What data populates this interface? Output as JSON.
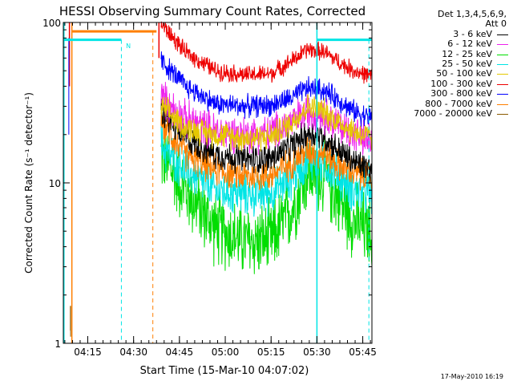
{
  "header": {
    "title": "HESSI Observing Summary Count Rates, Corrected"
  },
  "legend": {
    "detectors": "Det 1,3,4,5,6,9,",
    "attenuator": "Att 0",
    "entries": [
      {
        "label": "3 - 6 keV",
        "color": "#000000"
      },
      {
        "label": "6 - 12 keV",
        "color": "#ee22ee"
      },
      {
        "label": "12 - 25 keV",
        "color": "#00dd00"
      },
      {
        "label": "25 - 50 keV",
        "color": "#00e5e5"
      },
      {
        "label": "50 - 100 keV",
        "color": "#e5c800"
      },
      {
        "label": "100 - 300 keV",
        "color": "#ee0000"
      },
      {
        "label": "300 - 800 keV",
        "color": "#0000ff"
      },
      {
        "label": "800 - 7000 keV",
        "color": "#ff7f00"
      },
      {
        "label": "7000 - 20000 keV",
        "color": "#8b5a00"
      }
    ]
  },
  "footer": {
    "date": "17-May-2010 16:19"
  },
  "chart_data": {
    "type": "line",
    "title": "HESSI Observing Summary Count Rates, Corrected",
    "xlabel": "Start Time (15-Mar-10 04:07:02)",
    "ylabel": "Corrected Count Rate (s⁻¹ detector⁻¹)",
    "y_scale": "log",
    "ylim": [
      1,
      100
    ],
    "xlim_minutes": [
      0,
      101
    ],
    "x_tick_minutes": [
      8,
      23,
      38,
      53,
      68,
      83,
      98
    ],
    "x_tick_labels": [
      "04:15",
      "04:30",
      "04:45",
      "05:00",
      "05:15",
      "05:30",
      "05:45"
    ],
    "y_tick_values": [
      1,
      10,
      100
    ],
    "y_tick_labels": [
      "1",
      "10",
      "100"
    ],
    "series": [
      {
        "name": "3 - 6 keV",
        "color": "#000000",
        "x": [
          32,
          40,
          50,
          60,
          68,
          75,
          80,
          85,
          90,
          95,
          101
        ],
        "y": [
          28,
          19,
          15,
          14,
          14.2,
          17,
          20.5,
          19.5,
          16,
          13.5,
          12
        ]
      },
      {
        "name": "6 - 12 keV",
        "color": "#ee22ee",
        "x": [
          32,
          40,
          50,
          60,
          68,
          75,
          80,
          85,
          90,
          95,
          101
        ],
        "y": [
          34,
          25,
          21,
          20,
          20.5,
          24,
          28,
          27,
          23,
          20,
          18
        ]
      },
      {
        "name": "12 - 25 keV",
        "color": "#00dd00",
        "x": [
          32,
          40,
          50,
          60,
          68,
          75,
          80,
          85,
          90,
          95,
          101
        ],
        "y": [
          15,
          9,
          5.2,
          4.3,
          4.4,
          7,
          11.5,
          11,
          8,
          5.8,
          4.8
        ]
      },
      {
        "name": "25 - 50 keV",
        "color": "#00e5e5",
        "x": [
          32,
          40,
          50,
          60,
          68,
          75,
          80,
          85,
          90,
          95,
          101
        ],
        "y": [
          17,
          12,
          9,
          8.5,
          8.7,
          11,
          14,
          13.5,
          11,
          9,
          8.5
        ]
      },
      {
        "name": "50 - 100 keV",
        "color": "#e5c800",
        "x": [
          32,
          40,
          50,
          60,
          68,
          75,
          80,
          85,
          90,
          95,
          101
        ],
        "y": [
          30,
          22,
          20,
          19,
          19.5,
          24,
          30,
          28,
          24,
          21,
          19
        ]
      },
      {
        "name": "100 - 300 keV",
        "color": "#ee0000",
        "x": [
          32,
          40,
          50,
          60,
          68,
          75,
          80,
          85,
          90,
          95,
          101
        ],
        "y": [
          98,
          65,
          50,
          47,
          48,
          58,
          68,
          66,
          57,
          50,
          46
        ]
      },
      {
        "name": "300 - 800 keV",
        "color": "#0000ff",
        "x": [
          32,
          40,
          50,
          60,
          68,
          75,
          80,
          85,
          90,
          95,
          101
        ],
        "y": [
          58,
          40,
          31,
          30,
          30.5,
          34,
          39,
          38,
          33,
          28,
          25.5
        ]
      },
      {
        "name": "800 - 7000 keV",
        "color": "#ff7f00",
        "x": [
          32,
          40,
          50,
          60,
          68,
          75,
          80,
          85,
          90,
          95,
          101
        ],
        "y": [
          24,
          15,
          12,
          11,
          11.2,
          13.5,
          16,
          15.5,
          13,
          11.5,
          10.8
        ]
      },
      {
        "name": "7000 - 20000 keV",
        "color": "#8b5a00",
        "x": [
          2.3,
          2.3,
          2.4,
          2.4
        ],
        "y": [
          1.2,
          1.7,
          1.7,
          1.1
        ]
      }
    ],
    "overlays": {
      "orange_bar": {
        "x": [
          3,
          30.5
        ],
        "y": 88,
        "color": "#ff7f00"
      },
      "cyan_bars": [
        {
          "x": [
            0.2,
            19
          ],
          "y": 78
        },
        {
          "x": [
            83,
            101
          ],
          "y": 78
        }
      ],
      "cyan_color": "#00e5e5",
      "cyan_vlines_solid": [
        0.2,
        83
      ],
      "cyan_vlines_dashed": [
        19,
        100
      ],
      "orange_vlines_solid": [
        2.8
      ],
      "orange_vlines_dashed": [
        29.3
      ],
      "red_vlines_solid": [
        31.3
      ],
      "marker": {
        "text": "N",
        "x": 20.5,
        "y": 75
      }
    }
  }
}
